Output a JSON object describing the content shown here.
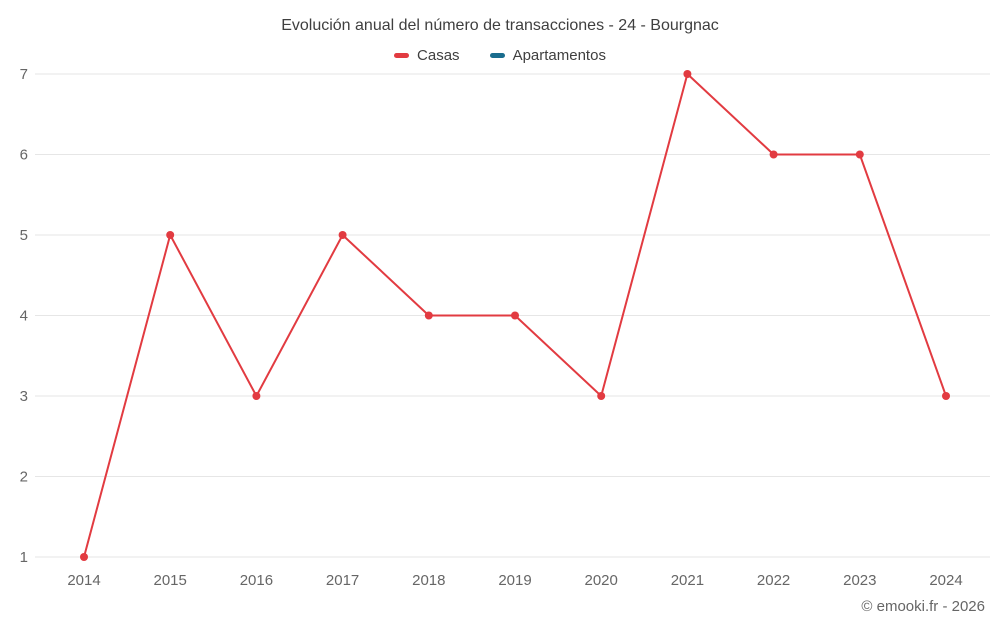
{
  "chart_data": {
    "type": "line",
    "title": "Evolución anual del número de transacciones - 24 - Bourgnac",
    "categories": [
      "2014",
      "2015",
      "2016",
      "2017",
      "2018",
      "2019",
      "2020",
      "2021",
      "2022",
      "2023",
      "2024"
    ],
    "series": [
      {
        "name": "Casas",
        "color": "#e23b41",
        "values": [
          1,
          5,
          3,
          5,
          4,
          4,
          3,
          7,
          6,
          6,
          3
        ]
      },
      {
        "name": "Apartamentos",
        "color": "#1a6d8e",
        "values": []
      }
    ],
    "ylim": [
      1,
      7
    ],
    "yticks": [
      1,
      2,
      3,
      4,
      5,
      6,
      7
    ],
    "grid": true,
    "grid_color": "#e6e6e6",
    "legend_position": "top",
    "tick_color": "#666666"
  },
  "footer": {
    "copyright": "© emooki.fr - 2026"
  }
}
